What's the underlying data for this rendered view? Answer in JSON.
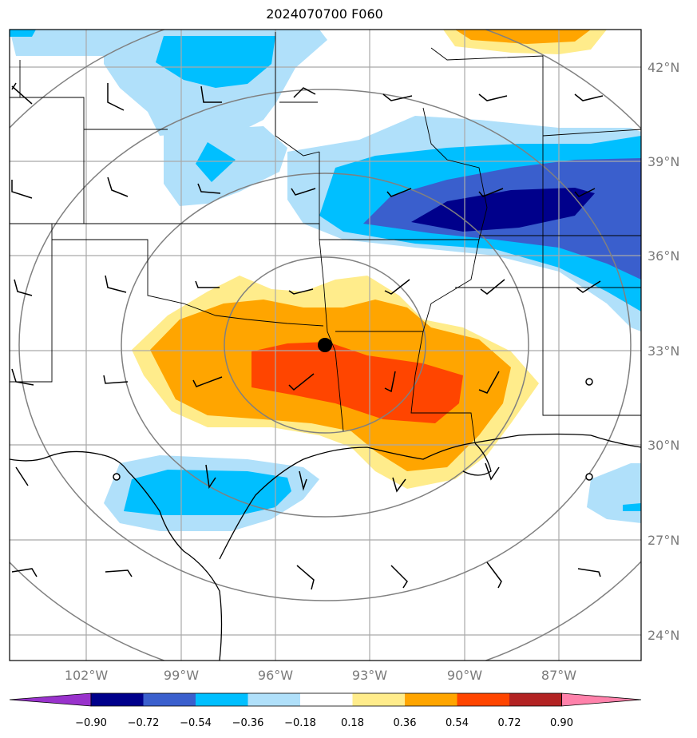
{
  "title": "2024070700 F060",
  "map": {
    "lat_ticks": [
      "42°N",
      "39°N",
      "36°N",
      "33°N",
      "30°N",
      "27°N",
      "24°N"
    ],
    "lon_ticks": [
      "102°W",
      "99°W",
      "96°W",
      "93°W",
      "90°W",
      "87°W"
    ]
  },
  "colorbar": {
    "levels": [
      "−0.90",
      "−0.72",
      "−0.54",
      "−0.36",
      "−0.18",
      "0.18",
      "0.36",
      "0.54",
      "0.72",
      "0.90"
    ],
    "colors": [
      "#9932cc",
      "#00008b",
      "#3a5fcd",
      "#00bfff",
      "#b0e0fa",
      "#ffffff",
      "#ffec8b",
      "#ffa500",
      "#ff4500",
      "#b22222",
      "#ff82ab"
    ]
  }
}
